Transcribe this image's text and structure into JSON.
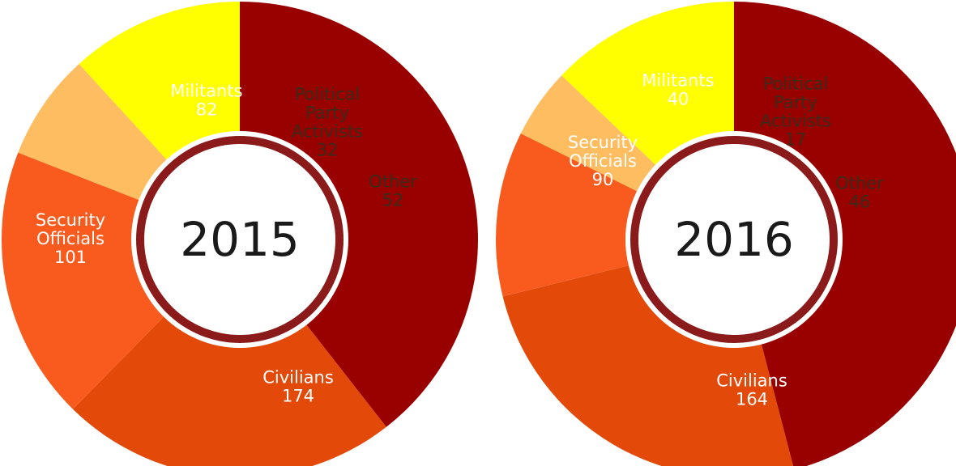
{
  "chart_data": [
    {
      "type": "pie",
      "title": "2015",
      "slices": [
        {
          "label": [
            "Civilians",
            "174"
          ],
          "category": "Civilians",
          "value": 174,
          "color": "#990000",
          "text_color": "#ffffff"
        },
        {
          "label": [
            "Security",
            "Officials",
            "101"
          ],
          "category": "Security Officials",
          "value": 101,
          "color": "#E34A0A",
          "text_color": "#ffffff"
        },
        {
          "label": [
            "Militants",
            "82"
          ],
          "category": "Militants",
          "value": 82,
          "color": "#F95A1D",
          "text_color": "#ffffff"
        },
        {
          "label": [
            "Political",
            "Party",
            "Activists",
            "32"
          ],
          "category": "Political Party Activists",
          "value": 32,
          "color": "#FEBD60",
          "text_color": "#3a2a1a"
        },
        {
          "label": [
            "Other",
            "52"
          ],
          "category": "Other",
          "value": 52,
          "color": "#FFFF00",
          "text_color": "#3a2a1a"
        }
      ]
    },
    {
      "type": "pie",
      "title": "2016",
      "slices": [
        {
          "label": [
            "Civilians",
            "164"
          ],
          "category": "Civilians",
          "value": 164,
          "color": "#990000",
          "text_color": "#ffffff"
        },
        {
          "label": [
            "Security",
            "Officials",
            "90"
          ],
          "category": "Security Officials",
          "value": 90,
          "color": "#E34A0A",
          "text_color": "#ffffff"
        },
        {
          "label": [
            "Militants",
            "40"
          ],
          "category": "Militants",
          "value": 40,
          "color": "#F95A1D",
          "text_color": "#ffffff"
        },
        {
          "label": [
            "Political",
            "Party",
            "Activists",
            "17"
          ],
          "category": "Political Party Activists",
          "value": 17,
          "color": "#FEBD60",
          "text_color": "#3a2a1a"
        },
        {
          "label": [
            "Other",
            "46"
          ],
          "category": "Other",
          "value": 46,
          "color": "#FFFF00",
          "text_color": "#3a2a1a"
        }
      ]
    }
  ],
  "ring_color": "#8B1A1A"
}
